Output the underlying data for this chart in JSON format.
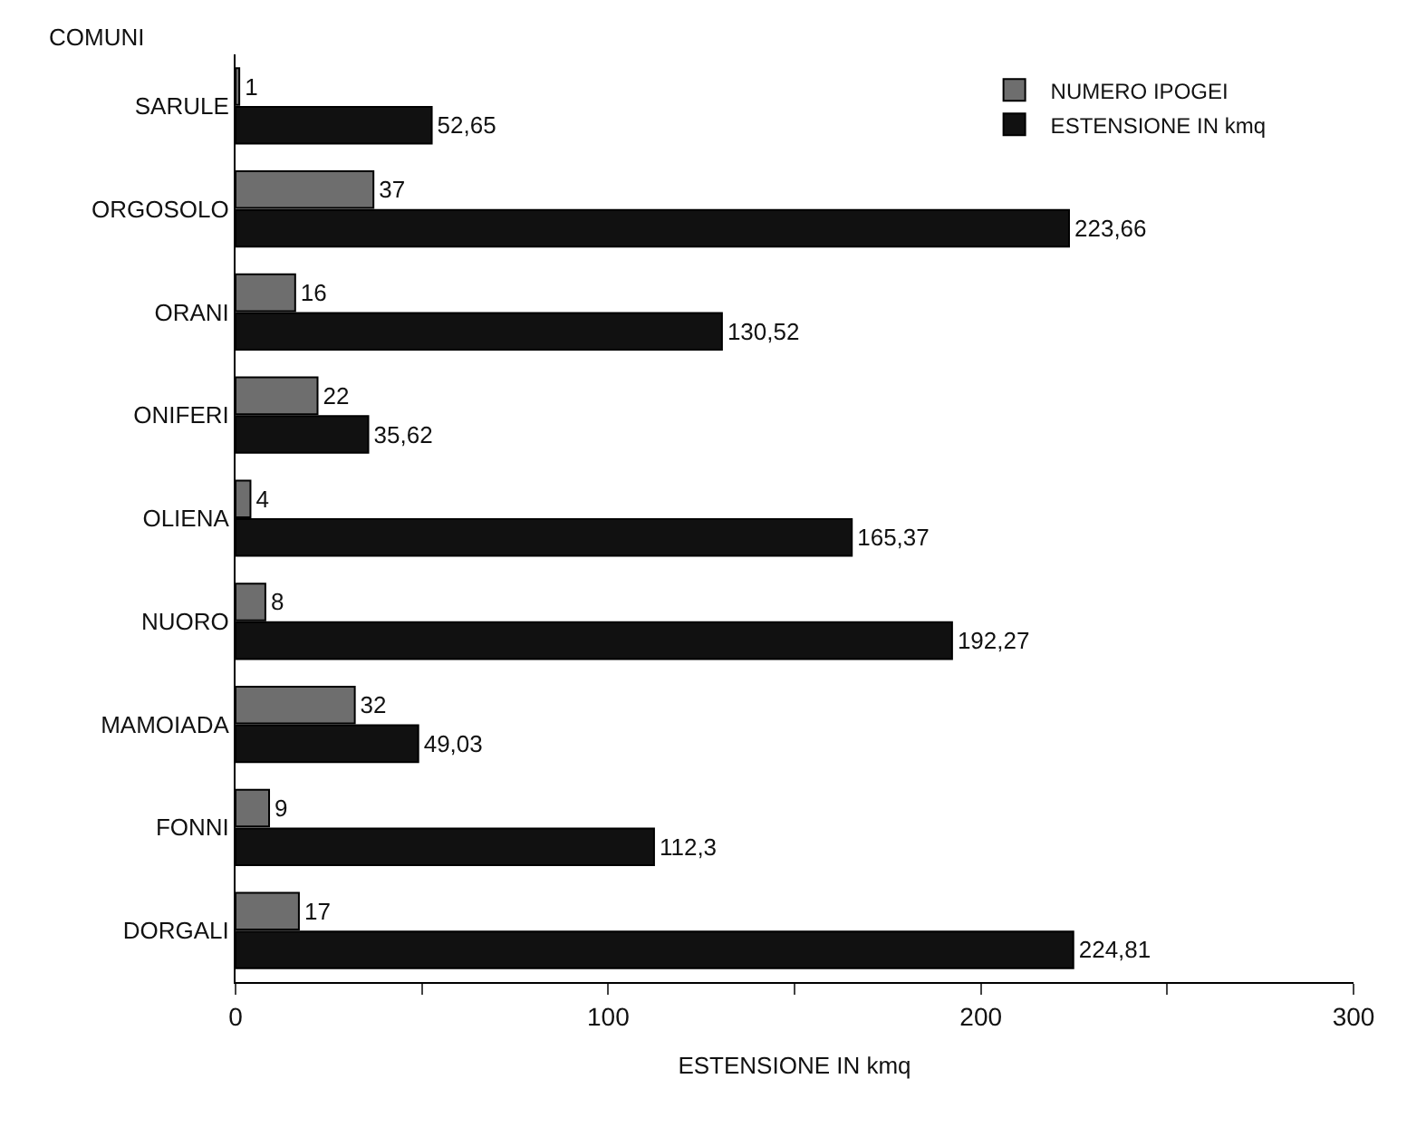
{
  "chart_data": {
    "type": "bar",
    "orientation": "horizontal",
    "xlabel": "ESTENSIONE IN kmq",
    "ylabel": "COMUNI",
    "categories": [
      "SARULE",
      "ORGOSOLO",
      "ORANI",
      "ONIFERI",
      "OLIENA",
      "NUORO",
      "MAMOIADA",
      "FONNI",
      "DORGALI"
    ],
    "series": [
      {
        "name": "NUMERO IPOGEI",
        "color": "#6e6e6e",
        "values": [
          1,
          37,
          16,
          22,
          4,
          8,
          32,
          9,
          17
        ],
        "value_labels": [
          "1",
          "37",
          "16",
          "22",
          "4",
          "8",
          "32",
          "9",
          "17"
        ]
      },
      {
        "name": "ESTENSIONE IN kmq",
        "color": "#111111",
        "values": [
          52.65,
          223.66,
          130.52,
          35.62,
          165.37,
          192.27,
          49.03,
          112.3,
          224.81
        ],
        "value_labels": [
          "52,65",
          "223,66",
          "130,52",
          "35,62",
          "165,37",
          "192,27",
          "49,03",
          "112,3",
          "224,81"
        ]
      }
    ],
    "xlim": [
      0,
      300
    ],
    "xticks": [
      0,
      {
        "value": 50,
        "label": null
      },
      100,
      {
        "value": 150,
        "label": null
      },
      200,
      {
        "value": 250,
        "label": null
      },
      300
    ],
    "legend": "top right"
  }
}
